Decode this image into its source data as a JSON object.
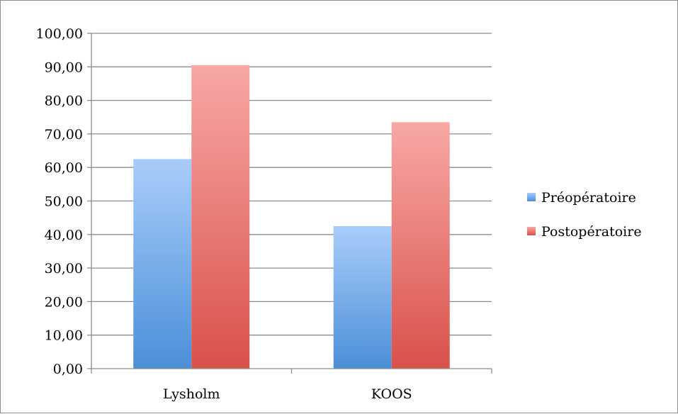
{
  "chart_data": {
    "type": "bar",
    "title": "",
    "xlabel": "",
    "ylabel": "",
    "categories": [
      "Lysholm",
      "KOOS"
    ],
    "series": [
      {
        "name": "Préopératoire",
        "values": [
          62.5,
          42.5
        ],
        "color_top": "#a9cdfa",
        "color_bottom": "#4b8fd8"
      },
      {
        "name": "Postopératoire",
        "values": [
          90.5,
          73.5
        ],
        "color_top": "#f8a8a6",
        "color_bottom": "#d9514a"
      }
    ],
    "ylim": [
      0,
      100
    ],
    "ytick_step": 10,
    "ytick_labels": [
      "0,00",
      "10,00",
      "20,00",
      "30,00",
      "40,00",
      "50,00",
      "60,00",
      "70,00",
      "80,00",
      "90,00",
      "100,00"
    ],
    "grid": true,
    "legend_position": "right"
  }
}
